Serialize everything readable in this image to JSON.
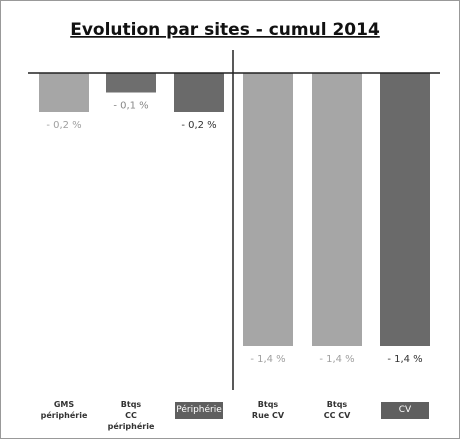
{
  "chart_data": {
    "type": "bar",
    "title": "Evolution par sites - cumul 2014",
    "categories": [
      "GMS\npériphérie",
      "Btqs\nCC périphérie",
      "Périphérie",
      "Btqs\nRue CV",
      "Btqs\nCC CV",
      "CV"
    ],
    "values": [
      -0.2,
      -0.1,
      -0.2,
      -1.4,
      -1.4,
      -1.4
    ],
    "value_labels": [
      "- 0,2 %",
      "- 0,1 %",
      "- 0,2 %",
      "- 1,4 %",
      "- 1,4 %",
      "- 1,4 %"
    ],
    "colors": [
      "#a6a6a6",
      "#6e6e6e",
      "#6a6a6a",
      "#a6a6a6",
      "#a6a6a6",
      "#6a6a6a"
    ],
    "label_colors": [
      "#a0a0a0",
      "#888888",
      "#333333",
      "#a0a0a0",
      "#a0a0a0",
      "#333333"
    ],
    "label_boxes": [
      false,
      false,
      true,
      false,
      false,
      true
    ],
    "ylim": [
      -1.4,
      0
    ]
  }
}
